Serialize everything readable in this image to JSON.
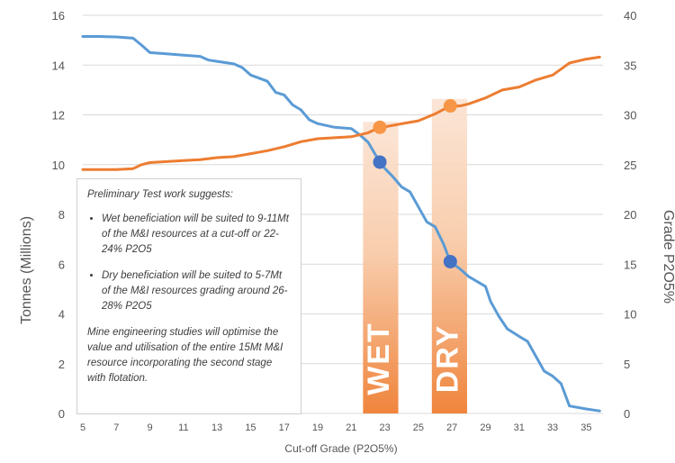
{
  "chart_data": {
    "type": "line",
    "xlabel": "Cut-off Grade (P2O5%)",
    "ylabel_left": "Tonnes (Millions)",
    "ylabel_right": "Grade P2O5%",
    "xlim": [
      5,
      36
    ],
    "ylim_left": [
      0,
      16
    ],
    "ylim_right": [
      0,
      40
    ],
    "x_ticks": [
      "5",
      "7",
      "9",
      "11",
      "13",
      "15",
      "17",
      "19",
      "21",
      "23",
      "25",
      "27",
      "29",
      "31",
      "33",
      "35"
    ],
    "y_ticks_left": [
      "0",
      "2",
      "4",
      "6",
      "8",
      "10",
      "12",
      "14",
      "16"
    ],
    "y_ticks_right": [
      "0",
      "5",
      "10",
      "15",
      "20",
      "25",
      "30",
      "35",
      "40"
    ],
    "grid": true,
    "series": [
      {
        "axis": "left",
        "color": "#5b9bd5",
        "points": [
          [
            5,
            15.15
          ],
          [
            6,
            15.15
          ],
          [
            7,
            15.13
          ],
          [
            8,
            15.08
          ],
          [
            8.5,
            14.8
          ],
          [
            9,
            14.5
          ],
          [
            10,
            14.45
          ],
          [
            11,
            14.4
          ],
          [
            12,
            14.35
          ],
          [
            12.5,
            14.2
          ],
          [
            13,
            14.15
          ],
          [
            14,
            14.05
          ],
          [
            14.5,
            13.9
          ],
          [
            15,
            13.6
          ],
          [
            16,
            13.35
          ],
          [
            16.5,
            12.9
          ],
          [
            17,
            12.8
          ],
          [
            17.5,
            12.4
          ],
          [
            18,
            12.2
          ],
          [
            18.5,
            11.8
          ],
          [
            19,
            11.65
          ],
          [
            20,
            11.5
          ],
          [
            21,
            11.45
          ],
          [
            21.5,
            11.2
          ],
          [
            22,
            10.9
          ],
          [
            22.7,
            10.1
          ],
          [
            23,
            9.85
          ],
          [
            23.5,
            9.5
          ],
          [
            24,
            9.1
          ],
          [
            24.5,
            8.9
          ],
          [
            25,
            8.3
          ],
          [
            25.5,
            7.7
          ],
          [
            26,
            7.5
          ],
          [
            26.5,
            6.8
          ],
          [
            26.9,
            6.1
          ],
          [
            27.5,
            5.8
          ],
          [
            28,
            5.5
          ],
          [
            28.5,
            5.3
          ],
          [
            29,
            5.1
          ],
          [
            29.3,
            4.5
          ],
          [
            29.8,
            3.9
          ],
          [
            30.3,
            3.4
          ],
          [
            31,
            3.1
          ],
          [
            31.5,
            2.9
          ],
          [
            32,
            2.3
          ],
          [
            32.5,
            1.7
          ],
          [
            33,
            1.5
          ],
          [
            33.5,
            1.2
          ],
          [
            34,
            0.3
          ],
          [
            35,
            0.18
          ],
          [
            35.8,
            0.1
          ]
        ]
      },
      {
        "axis": "right",
        "color": "#ed7d31",
        "points": [
          [
            5,
            24.5
          ],
          [
            6,
            24.5
          ],
          [
            7,
            24.5
          ],
          [
            8,
            24.6
          ],
          [
            8.5,
            25.0
          ],
          [
            9,
            25.2
          ],
          [
            10,
            25.3
          ],
          [
            11,
            25.4
          ],
          [
            12,
            25.5
          ],
          [
            13,
            25.7
          ],
          [
            14,
            25.8
          ],
          [
            15,
            26.1
          ],
          [
            16,
            26.4
          ],
          [
            17,
            26.8
          ],
          [
            18,
            27.3
          ],
          [
            19,
            27.6
          ],
          [
            20,
            27.7
          ],
          [
            21,
            27.8
          ],
          [
            22,
            28.2
          ],
          [
            22.7,
            28.75
          ],
          [
            23,
            28.8
          ],
          [
            24,
            29.1
          ],
          [
            25,
            29.4
          ],
          [
            26,
            30.1
          ],
          [
            26.9,
            30.9
          ],
          [
            27.5,
            30.9
          ],
          [
            28,
            31.1
          ],
          [
            29,
            31.7
          ],
          [
            30,
            32.5
          ],
          [
            31,
            32.8
          ],
          [
            32,
            33.5
          ],
          [
            33,
            34.0
          ],
          [
            33.5,
            34.6
          ],
          [
            34,
            35.2
          ],
          [
            35,
            35.6
          ],
          [
            35.8,
            35.8
          ]
        ]
      }
    ],
    "markers": [
      {
        "x": 22.7,
        "y": 10.1,
        "axis": "left",
        "color": "#4472c4"
      },
      {
        "x": 26.9,
        "y": 6.1,
        "axis": "left",
        "color": "#4472c4"
      },
      {
        "x": 22.7,
        "y": 28.75,
        "axis": "right",
        "color": "#f79646"
      },
      {
        "x": 26.9,
        "y": 30.9,
        "axis": "right",
        "color": "#f79646"
      }
    ],
    "bands": [
      {
        "label": "WET",
        "x_start": 21.7,
        "x_end": 23.8,
        "y_top": 29.3
      },
      {
        "label": "DRY",
        "x_start": 25.8,
        "x_end": 27.9,
        "y_top": 31.6
      }
    ],
    "annotation": {
      "intro": "Preliminary Test work suggests:",
      "bullets": [
        "Wet beneficiation will be suited to 9-11Mt of the M&I resources at a cut-off or 22-24% P2O5",
        "Dry beneficiation will be suited to 5-7Mt of the M&I resources grading around 26-28% P2O5"
      ],
      "closing": "Mine engineering studies will optimise the value and utilisation of the entire 15Mt M&I resource incorporating the second stage with flotation."
    }
  }
}
